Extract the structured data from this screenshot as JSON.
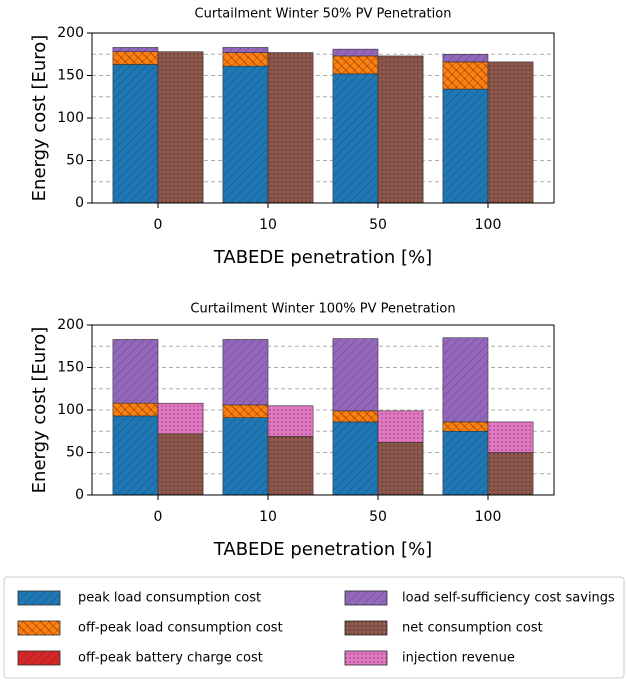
{
  "chart_data": [
    {
      "type": "bar",
      "title": "Curtailment Winter 50% PV Penetration",
      "x_label": "TABEDE penetration [%]",
      "y_label": "Energy cost [Euro]",
      "categories": [
        "0",
        "10",
        "50",
        "100"
      ],
      "ylim": [
        0,
        200
      ],
      "yticks": [
        0,
        50,
        100,
        150,
        200
      ],
      "yminor": [
        25,
        75,
        125,
        175
      ],
      "grid": true,
      "series": [
        {
          "name": "peak load consumption cost",
          "color": "#1f77b4",
          "hatch": "//",
          "stack": 0,
          "values": [
            163,
            161,
            152,
            134
          ]
        },
        {
          "name": "off-peak load consumption cost",
          "color": "#ff7f0e",
          "hatch": "xx",
          "stack": 0,
          "values": [
            15,
            16,
            21,
            32
          ]
        },
        {
          "name": "off-peak battery charge cost",
          "color": "#d62728",
          "hatch": "//",
          "stack": 0,
          "values": [
            0,
            0,
            0,
            0
          ]
        },
        {
          "name": "load self-sufficiency cost savings",
          "color": "#9467bd",
          "hatch": "//",
          "stack": 0,
          "values": [
            5,
            6,
            8,
            9
          ]
        },
        {
          "name": "net consumption cost",
          "color": "#8c564b",
          "hatch": "..",
          "stack": 1,
          "values": [
            178,
            177,
            173,
            166
          ]
        },
        {
          "name": "injection revenue",
          "color": "#e377c2",
          "hatch": "..",
          "stack": 1,
          "values": [
            0,
            0,
            0,
            0
          ]
        }
      ]
    },
    {
      "type": "bar",
      "title": "Curtailment Winter 100% PV Penetration",
      "x_label": "TABEDE penetration [%]",
      "y_label": "Energy cost [Euro]",
      "categories": [
        "0",
        "10",
        "50",
        "100"
      ],
      "ylim": [
        0,
        200
      ],
      "yticks": [
        0,
        50,
        100,
        150,
        200
      ],
      "yminor": [
        25,
        75,
        125,
        175
      ],
      "grid": true,
      "series": [
        {
          "color": "#1f77b4",
          "hatch": "//",
          "stack": 0,
          "values": [
            93,
            91,
            86,
            75
          ]
        },
        {
          "color": "#ff7f0e",
          "hatch": "xx",
          "stack": 0,
          "values": [
            15,
            15,
            13,
            11
          ]
        },
        {
          "color": "#d62728",
          "hatch": "//",
          "stack": 0,
          "values": [
            0,
            0,
            0,
            0
          ]
        },
        {
          "color": "#9467bd",
          "hatch": "//",
          "stack": 0,
          "values": [
            75,
            77,
            85,
            99
          ]
        },
        {
          "color": "#8c564b",
          "hatch": "..",
          "stack": 1,
          "values": [
            72,
            69,
            62,
            50
          ]
        },
        {
          "color": "#e377c2",
          "hatch": "..",
          "stack": 1,
          "values": [
            36,
            36,
            37,
            36
          ]
        }
      ]
    }
  ]
}
